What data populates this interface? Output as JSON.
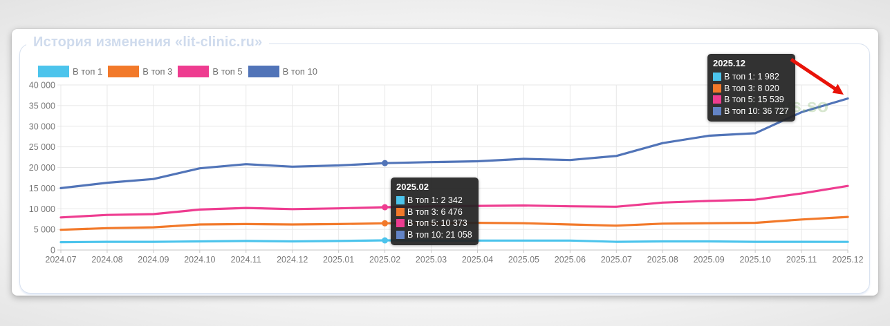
{
  "title": "История изменения «lit-clinic.ru»",
  "watermark": {
    "text": "keys.so"
  },
  "axis": {
    "label_color": "#787878"
  },
  "annotations": {
    "arrow_color": "#e81309"
  },
  "chart_data": {
    "type": "line",
    "x": [
      "2024.07",
      "2024.08",
      "2024.09",
      "2024.10",
      "2024.11",
      "2024.12",
      "2025.01",
      "2025.02",
      "2025.03",
      "2025.04",
      "2025.05",
      "2025.06",
      "2025.07",
      "2025.08",
      "2025.09",
      "2025.10",
      "2025.11",
      "2025.12"
    ],
    "series": [
      {
        "key": "top1",
        "name": "В топ 1",
        "color": "#4cc4ec",
        "values": [
          1900,
          2000,
          2000,
          2100,
          2200,
          2100,
          2200,
          2342,
          2300,
          2300,
          2300,
          2300,
          2000,
          2100,
          2100,
          2000,
          2000,
          1982
        ]
      },
      {
        "key": "top3",
        "name": "В топ 3",
        "color": "#f2792a",
        "values": [
          4900,
          5300,
          5500,
          6200,
          6300,
          6200,
          6300,
          6476,
          6500,
          6600,
          6500,
          6200,
          5900,
          6400,
          6500,
          6600,
          7400,
          8020
        ]
      },
      {
        "key": "top5",
        "name": "В топ 5",
        "color": "#ee3c90",
        "values": [
          7900,
          8500,
          8700,
          9800,
          10200,
          9900,
          10100,
          10373,
          10600,
          10700,
          10800,
          10600,
          10500,
          11500,
          11900,
          12200,
          13700,
          15539
        ]
      },
      {
        "key": "top10",
        "name": "В топ 10",
        "color": "#5174b8",
        "values": [
          15000,
          16300,
          17200,
          19800,
          20800,
          20200,
          20500,
          21058,
          21300,
          21500,
          22100,
          21800,
          22800,
          25900,
          27700,
          28300,
          33400,
          36727
        ]
      }
    ],
    "ylim": [
      0,
      40000
    ],
    "ytick_step": 5000,
    "yticks": [
      "0",
      "5 000",
      "10 000",
      "15 000",
      "20 000",
      "25 000",
      "30 000",
      "35 000",
      "40 000"
    ],
    "grid": true,
    "legend_position": "top-left"
  },
  "tooltips": [
    {
      "title": "2025.02",
      "month_index": 7,
      "show_markers": true,
      "rows": [
        {
          "label": "В топ 1",
          "value": "2 342",
          "color": "#4cc4ec"
        },
        {
          "label": "В топ 3",
          "value": "6 476",
          "color": "#f2792a"
        },
        {
          "label": "В топ 5",
          "value": "10 373",
          "color": "#ee3c90"
        },
        {
          "label": "В топ 10",
          "value": "21 058",
          "color": "#6384c6"
        }
      ]
    },
    {
      "title": "2025.12",
      "month_index": 17,
      "show_markers": false,
      "rows": [
        {
          "label": "В топ 1",
          "value": "1 982",
          "color": "#4cc4ec"
        },
        {
          "label": "В топ 3",
          "value": "8 020",
          "color": "#f2792a"
        },
        {
          "label": "В топ 5",
          "value": "15 539",
          "color": "#ee3c90"
        },
        {
          "label": "В топ 10",
          "value": "36 727",
          "color": "#6384c6"
        }
      ]
    }
  ]
}
